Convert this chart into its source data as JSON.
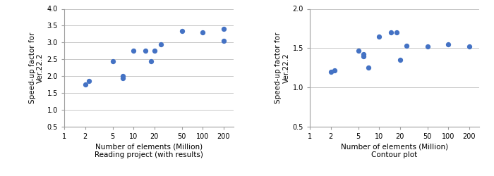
{
  "chart1": {
    "title_line1": "Number of elements (Million)",
    "title_line2": "Reading project (with results)",
    "ylabel_line1": "Speed-up factor for",
    "ylabel_line2": "Ver.22.2",
    "x": [
      2,
      2.3,
      5,
      7,
      7,
      10,
      15,
      20,
      18,
      25,
      50,
      100,
      200,
      200
    ],
    "y": [
      1.75,
      1.85,
      2.45,
      1.95,
      2.0,
      2.75,
      2.75,
      2.75,
      2.45,
      2.95,
      3.35,
      3.3,
      3.4,
      3.05
    ],
    "xlim": [
      1,
      280
    ],
    "ylim": [
      0.5,
      4.0
    ],
    "yticks": [
      0.5,
      1.0,
      1.5,
      2.0,
      2.5,
      3.0,
      3.5,
      4.0
    ],
    "xticks": [
      1,
      2,
      5,
      10,
      20,
      50,
      100,
      200
    ],
    "xtick_labels": [
      "1",
      "2",
      "5",
      "10",
      "20",
      "50",
      "100",
      "200"
    ],
    "dot_color": "#4472C4",
    "dot_size": 18
  },
  "chart2": {
    "title_line1": "Number of elements (Million)",
    "title_line2": "Contour plot",
    "ylabel_line1": "Speed-up factor for",
    "ylabel_line2": "Ver.22.2",
    "x": [
      2,
      2.3,
      5,
      6,
      7,
      6,
      10,
      15,
      20,
      18,
      25,
      50,
      100,
      200
    ],
    "y": [
      1.2,
      1.22,
      1.47,
      1.4,
      1.25,
      1.42,
      1.65,
      1.7,
      1.35,
      1.7,
      1.53,
      1.52,
      1.55,
      1.52
    ],
    "xlim": [
      1,
      280
    ],
    "ylim": [
      0.5,
      2.0
    ],
    "yticks": [
      0.5,
      1.0,
      1.5,
      2.0
    ],
    "xticks": [
      1,
      2,
      5,
      10,
      20,
      50,
      100,
      200
    ],
    "xtick_labels": [
      "1",
      "2",
      "5",
      "10",
      "20",
      "50",
      "100",
      "200"
    ],
    "dot_color": "#4472C4",
    "dot_size": 18
  },
  "fig_background": "#ffffff",
  "axes_background": "#ffffff",
  "grid_color": "#c8c8c8",
  "spine_color": "#a0a0a0",
  "tick_fontsize": 7,
  "label_fontsize": 7.5
}
